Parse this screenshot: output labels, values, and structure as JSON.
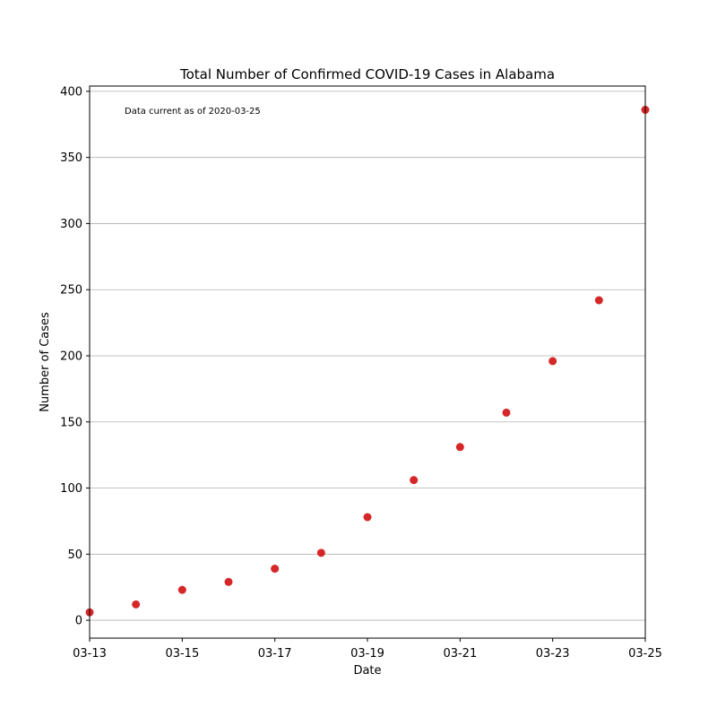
{
  "chart_data": {
    "type": "scatter",
    "title": "Total Number of Confirmed COVID-19 Cases in Alabama",
    "xlabel": "Date",
    "ylabel": "Number of Cases",
    "annotation": "Data current as of 2020-03-25",
    "x": [
      "2020-03-13",
      "2020-03-14",
      "2020-03-15",
      "2020-03-16",
      "2020-03-17",
      "2020-03-18",
      "2020-03-19",
      "2020-03-20",
      "2020-03-21",
      "2020-03-22",
      "2020-03-23",
      "2020-03-24",
      "2020-03-25"
    ],
    "series": [
      {
        "values": [
          6,
          12,
          23,
          29,
          39,
          51,
          78,
          106,
          131,
          157,
          196,
          242,
          386
        ],
        "color": "#d62728"
      }
    ],
    "xlim": [
      "2020-03-13",
      "2020-03-25"
    ],
    "ylim": [
      -13.5,
      404
    ],
    "xticks": [
      "2020-03-13",
      "2020-03-15",
      "2020-03-17",
      "2020-03-19",
      "2020-03-21",
      "2020-03-23",
      "2020-03-25"
    ],
    "xtick_labels": [
      "03-13",
      "03-15",
      "03-17",
      "03-19",
      "03-21",
      "03-23",
      "03-25"
    ],
    "yticks": [
      0,
      50,
      100,
      150,
      200,
      250,
      300,
      350,
      400
    ],
    "ytick_labels": [
      "0",
      "50",
      "100",
      "150",
      "200",
      "250",
      "300",
      "350",
      "400"
    ],
    "grid": "horizontal"
  }
}
